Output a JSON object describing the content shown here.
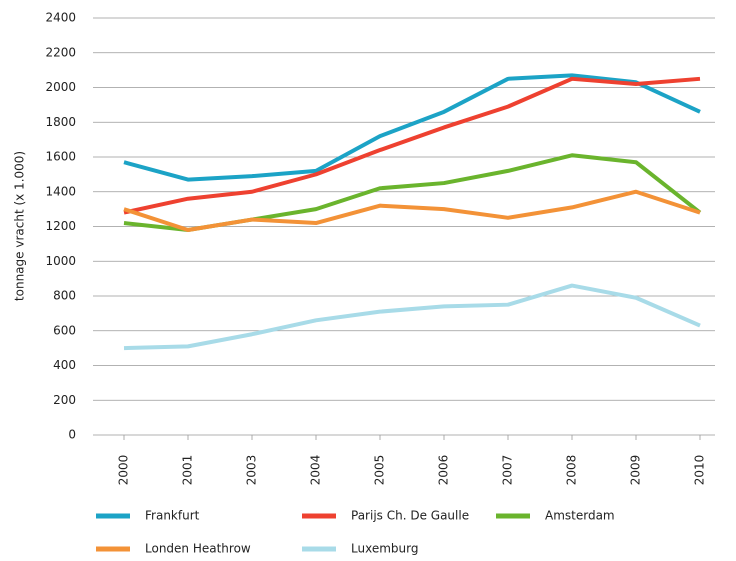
{
  "chart_data": {
    "type": "line",
    "y_label": "tonnage vracht (x 1.000)",
    "categories": [
      "2000",
      "2001",
      "2003",
      "2004",
      "2005",
      "2006",
      "2007",
      "2008",
      "2009",
      "2010"
    ],
    "series": [
      {
        "name": "Frankfurt",
        "color": "#1ca3c6",
        "values": [
          1570,
          1470,
          1490,
          1520,
          1720,
          1860,
          2050,
          2070,
          2030,
          1860
        ]
      },
      {
        "name": "Parijs Ch. De Gaulle",
        "color": "#ee4130",
        "values": [
          1280,
          1360,
          1400,
          1500,
          1640,
          1770,
          1890,
          2050,
          2020,
          2050
        ]
      },
      {
        "name": "Amsterdam",
        "color": "#6ab42d",
        "values": [
          1220,
          1180,
          1240,
          1300,
          1420,
          1450,
          1520,
          1610,
          1570,
          1280
        ]
      },
      {
        "name": "Londen Heathrow",
        "color": "#f39237",
        "values": [
          1300,
          1180,
          1240,
          1220,
          1320,
          1300,
          1250,
          1310,
          1400,
          1280
        ]
      },
      {
        "name": "Luxemburg",
        "color": "#a8dbe8",
        "values": [
          500,
          510,
          580,
          660,
          710,
          740,
          750,
          860,
          790,
          630
        ]
      }
    ],
    "ylim": [
      0,
      2400
    ],
    "yticks": [
      0,
      200,
      400,
      600,
      800,
      1000,
      1200,
      1400,
      1600,
      1800,
      2000,
      2200,
      2400
    ],
    "grid": true
  }
}
